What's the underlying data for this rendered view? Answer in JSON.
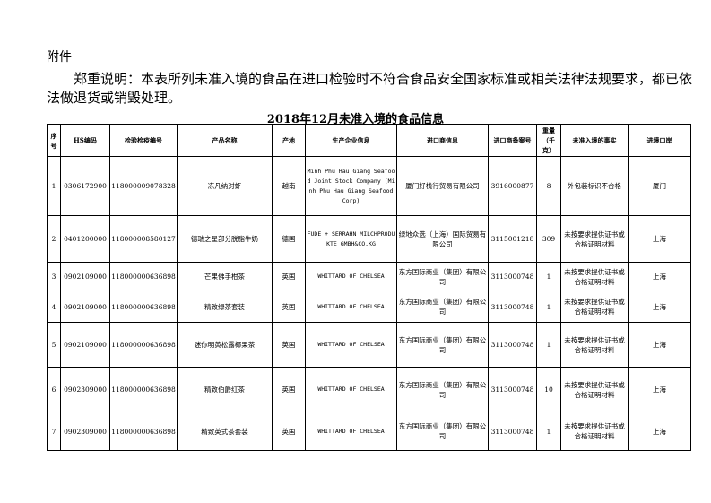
{
  "attachment_label": "附件",
  "note": "郑重说明：本表所列未准入境的食品在进口检验时不符合食品安全国家标准或相关法律法规要求，都已依法做退货或销毁处理。",
  "table_title": "2018年12月未准入境的食品信息",
  "headers": [
    "序号",
    "HS编码",
    "检验检疫编号",
    "产品名称",
    "产地",
    "生产企业信息",
    "进口商信息",
    "进口商备案号",
    "重量（千克）",
    "未准入境的事实",
    "进境口岸"
  ],
  "rows": [
    [
      "1",
      "0306172900",
      "118000009078328",
      "冻凡纳对虾",
      "越南",
      "Minh Phu Hau Giang Seafood Joint Stock Company (Minh Phu Hau Giang Seafood Corp)",
      "厦门好栈行贸易有限公司",
      "3916000877",
      "8",
      "外包装标识不合格",
      "厦门"
    ],
    [
      "2",
      "0401200000",
      "118000008580127",
      "德瑞之星部分脱脂牛奶",
      "德国",
      "FUDE + SERRAHN MILCHPRODUKTE GMBH&CO.KG",
      "绿地众选（上海）国际贸易有限公司",
      "3115001218",
      "309",
      "未按要求提供证书或合格证明材料",
      "上海"
    ],
    [
      "3",
      "0902109000",
      "118000000636898",
      "芒果佛手柑茶",
      "英国",
      "WHITTARD OF CHELSEA",
      "东方国际商业（集团）有限公司",
      "3113000748",
      "1",
      "未按要求提供证书或合格证明材料",
      "上海"
    ],
    [
      "4",
      "0902109000",
      "118000000636898",
      "精致绿茶套装",
      "英国",
      "WHITTARD OF CHELSEA",
      "东方国际商业（集团）有限公司",
      "3113000748",
      "1",
      "未按要求提供证书或合格证明材料",
      "上海"
    ],
    [
      "5",
      "0902109000",
      "118000000636898",
      "迷你明黄松露椰果茶",
      "英国",
      "WHITTARD OF CHELSEA",
      "东方国际商业（集团）有限公司",
      "3113000748",
      "1",
      "未按要求提供证书或合格证明材料",
      "上海"
    ],
    [
      "6",
      "0902309000",
      "118000000636898",
      "精致伯爵红茶",
      "英国",
      "WHITTARD OF CHELSEA",
      "东方国际商业（集团）有限公司",
      "3113000748",
      "10",
      "未按要求提供证书或合格证明材料",
      "上海"
    ],
    [
      "7",
      "0902309000",
      "118000000636898",
      "精致英式茶套装",
      "英国",
      "WHITTARD OF CHELSEA",
      "东方国际商业（集团）有限公司",
      "3113000748",
      "1",
      "未按要求提供证书或合格证明材料",
      "上海"
    ]
  ]
}
